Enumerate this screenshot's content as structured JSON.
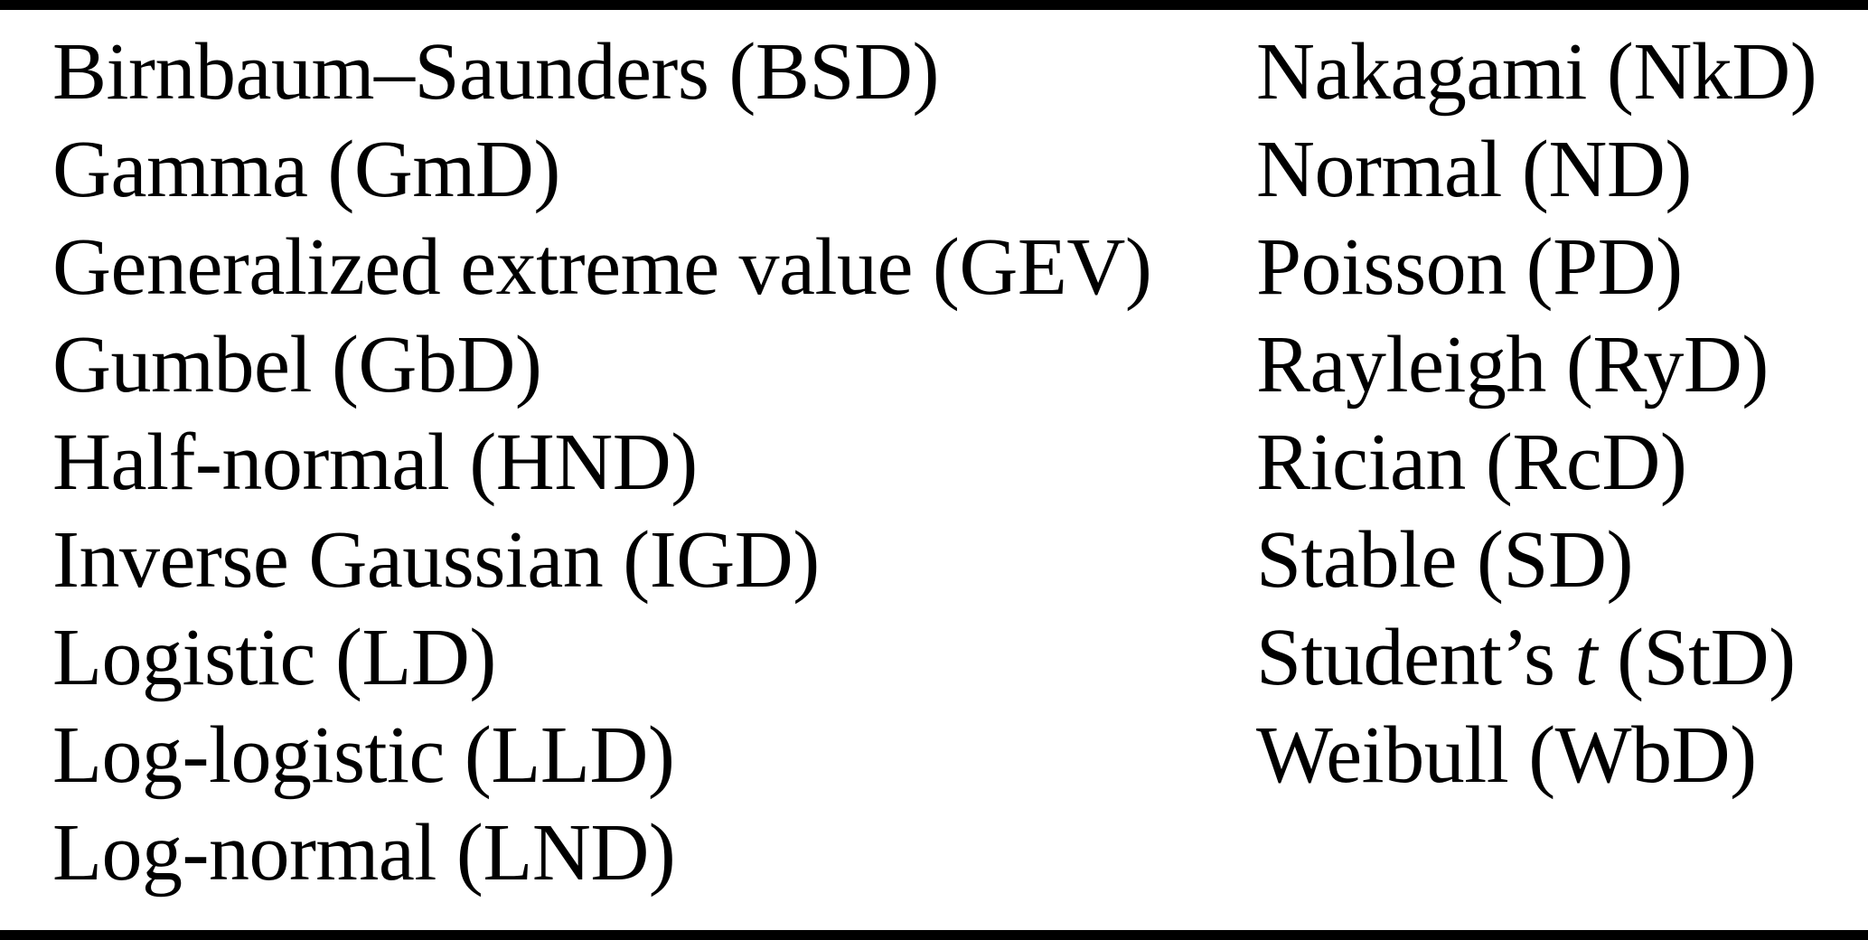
{
  "colors": {
    "background": "#ffffff",
    "text": "#000000",
    "rule": "#000000"
  },
  "table": {
    "kind": "two-column distribution list",
    "columns": [
      {
        "name": "left",
        "items": [
          {
            "segments": [
              {
                "text": "Birnbaum–Saunders (BSD)"
              }
            ]
          },
          {
            "segments": [
              {
                "text": "Gamma (GmD)"
              }
            ]
          },
          {
            "segments": [
              {
                "text": "Generalized extreme value (GEV)"
              }
            ]
          },
          {
            "segments": [
              {
                "text": "Gumbel (GbD)"
              }
            ]
          },
          {
            "segments": [
              {
                "text": "Half-normal (HND)"
              }
            ]
          },
          {
            "segments": [
              {
                "text": "Inverse Gaussian (IGD)"
              }
            ]
          },
          {
            "segments": [
              {
                "text": "Logistic (LD)"
              }
            ]
          },
          {
            "segments": [
              {
                "text": "Log-logistic (LLD)"
              }
            ]
          },
          {
            "segments": [
              {
                "text": "Log-normal (LND)"
              }
            ]
          }
        ]
      },
      {
        "name": "right",
        "items": [
          {
            "segments": [
              {
                "text": "Nakagami (NkD)"
              }
            ]
          },
          {
            "segments": [
              {
                "text": "Normal (ND)"
              }
            ]
          },
          {
            "segments": [
              {
                "text": "Poisson (PD)"
              }
            ]
          },
          {
            "segments": [
              {
                "text": "Rayleigh (RyD)"
              }
            ]
          },
          {
            "segments": [
              {
                "text": "Rician (RcD)"
              }
            ]
          },
          {
            "segments": [
              {
                "text": "Stable (SD)"
              }
            ]
          },
          {
            "segments": [
              {
                "text": "Student’s "
              },
              {
                "text": "t",
                "italic": true
              },
              {
                "text": " (StD)"
              }
            ]
          },
          {
            "segments": [
              {
                "text": "Weibull (WbD)"
              }
            ]
          }
        ]
      }
    ]
  }
}
